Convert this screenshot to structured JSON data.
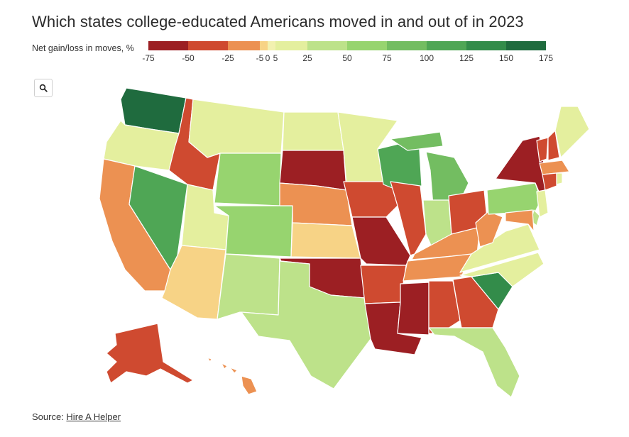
{
  "title": "Which states college-educated Americans moved in and out of in 2023",
  "legend": {
    "label": "Net gain/loss in moves, %",
    "ticks": [
      "-75",
      "-50",
      "-25",
      "-5",
      "0",
      "5",
      "25",
      "50",
      "75",
      "100",
      "125",
      "150",
      "175"
    ],
    "bins": [
      {
        "from": -75,
        "to": -50,
        "color": "#9c1f23"
      },
      {
        "from": -50,
        "to": -25,
        "color": "#cf4a30"
      },
      {
        "from": -25,
        "to": -5,
        "color": "#ec9152"
      },
      {
        "from": -5,
        "to": 0,
        "color": "#f7d386"
      },
      {
        "from": 0,
        "to": 5,
        "color": "#f2f1b0"
      },
      {
        "from": 5,
        "to": 25,
        "color": "#e4ef9e"
      },
      {
        "from": 25,
        "to": 50,
        "color": "#bde28a"
      },
      {
        "from": 50,
        "to": 75,
        "color": "#97d46f"
      },
      {
        "from": 75,
        "to": 100,
        "color": "#73bd61"
      },
      {
        "from": 100,
        "to": 125,
        "color": "#4fa655"
      },
      {
        "from": 125,
        "to": 150,
        "color": "#338c4a"
      },
      {
        "from": 150,
        "to": 175,
        "color": "#1f6b3e"
      }
    ]
  },
  "zoom_icon": "search-icon",
  "source": {
    "prefix": "Source: ",
    "link_text": "Hire A Helper"
  },
  "states": [
    {
      "id": "WA",
      "bin": 11
    },
    {
      "id": "OR",
      "bin": 5
    },
    {
      "id": "CA",
      "bin": 2
    },
    {
      "id": "ID",
      "bin": 1
    },
    {
      "id": "NV",
      "bin": 9
    },
    {
      "id": "UT",
      "bin": 5
    },
    {
      "id": "AZ",
      "bin": 3
    },
    {
      "id": "MT",
      "bin": 5
    },
    {
      "id": "WY",
      "bin": 7
    },
    {
      "id": "CO",
      "bin": 7
    },
    {
      "id": "NM",
      "bin": 6
    },
    {
      "id": "ND",
      "bin": 5
    },
    {
      "id": "SD",
      "bin": 0
    },
    {
      "id": "NE",
      "bin": 2
    },
    {
      "id": "KS",
      "bin": 3
    },
    {
      "id": "OK",
      "bin": 0
    },
    {
      "id": "TX",
      "bin": 6
    },
    {
      "id": "MN",
      "bin": 5
    },
    {
      "id": "IA",
      "bin": 1
    },
    {
      "id": "MO",
      "bin": 0
    },
    {
      "id": "AR",
      "bin": 1
    },
    {
      "id": "LA",
      "bin": 0
    },
    {
      "id": "WI",
      "bin": 9
    },
    {
      "id": "IL",
      "bin": 1
    },
    {
      "id": "MI",
      "bin": 8
    },
    {
      "id": "IN",
      "bin": 6
    },
    {
      "id": "OH",
      "bin": 1
    },
    {
      "id": "KY",
      "bin": 2
    },
    {
      "id": "TN",
      "bin": 2
    },
    {
      "id": "MS",
      "bin": 0
    },
    {
      "id": "AL",
      "bin": 1
    },
    {
      "id": "GA",
      "bin": 1
    },
    {
      "id": "FL",
      "bin": 6
    },
    {
      "id": "SC",
      "bin": 10
    },
    {
      "id": "NC",
      "bin": 5
    },
    {
      "id": "VA",
      "bin": 5
    },
    {
      "id": "WV",
      "bin": 2
    },
    {
      "id": "PA",
      "bin": 7
    },
    {
      "id": "NY",
      "bin": 0
    },
    {
      "id": "VT",
      "bin": 1
    },
    {
      "id": "NH",
      "bin": 1
    },
    {
      "id": "ME",
      "bin": 5
    },
    {
      "id": "MA",
      "bin": 2
    },
    {
      "id": "CT",
      "bin": 1
    },
    {
      "id": "RI",
      "bin": 5
    },
    {
      "id": "NJ",
      "bin": 5
    },
    {
      "id": "DE",
      "bin": 6
    },
    {
      "id": "MD",
      "bin": 2
    },
    {
      "id": "AK",
      "bin": 1
    },
    {
      "id": "HI",
      "bin": 2
    }
  ]
}
